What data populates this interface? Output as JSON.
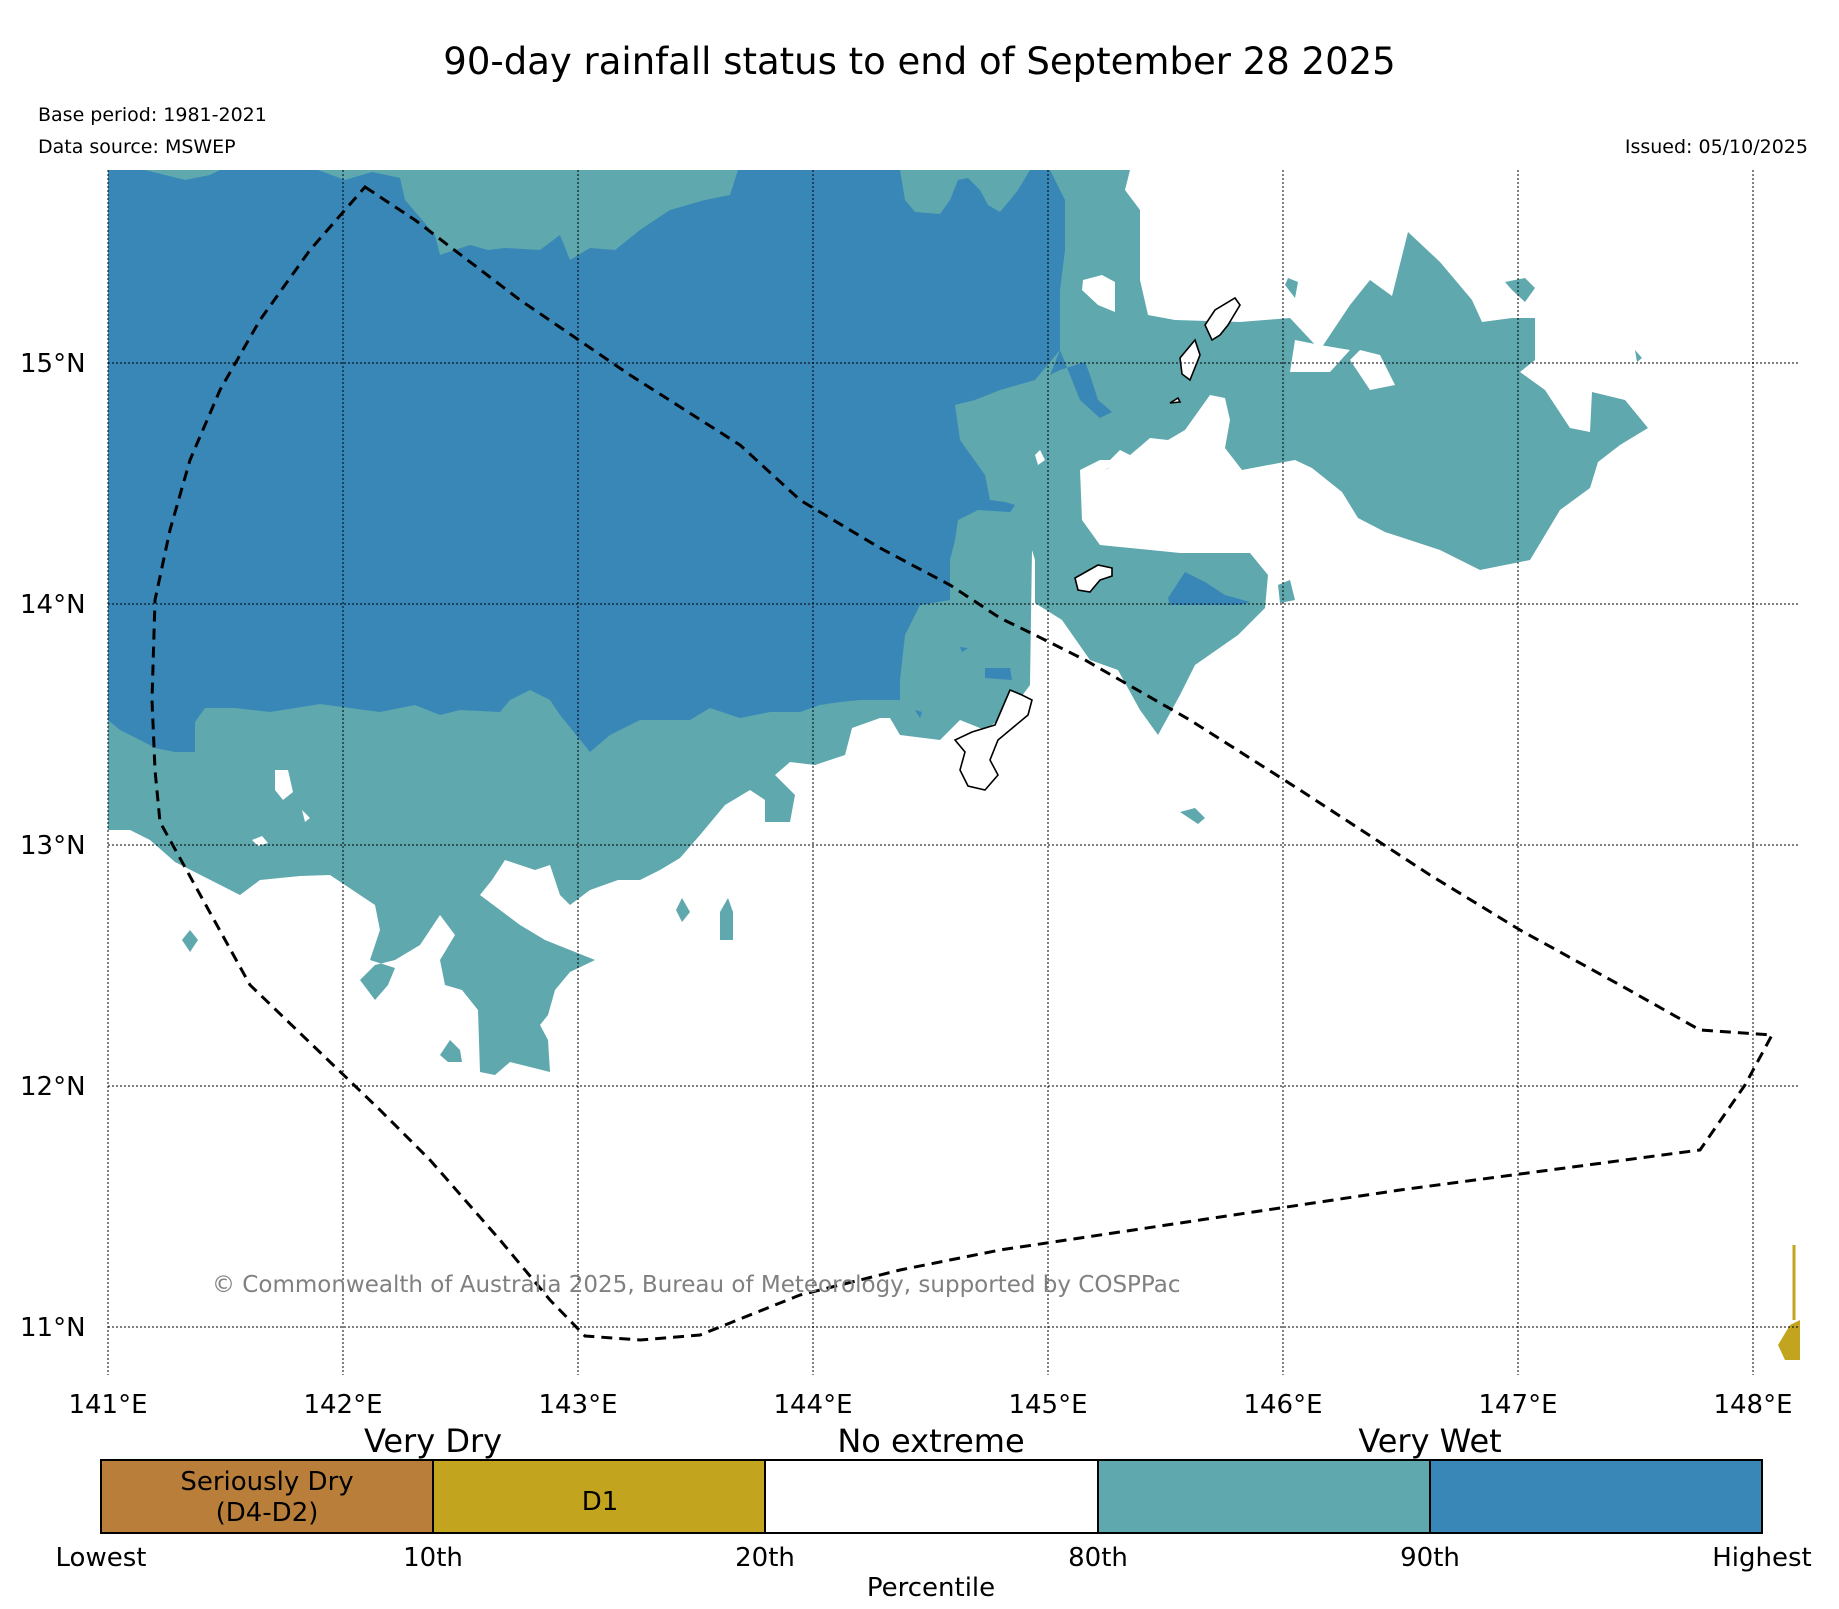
{
  "title": "90-day rainfall status to end of September 28 2025",
  "base_period": "Base period: 1981-2021",
  "data_source": "Data source: MSWEP",
  "issued": "Issued: 05/10/2025",
  "copyright": "© Commonwealth of Australia 2025, Bureau of Meteorology, supported by COSPPac",
  "lon_labels": [
    "141°E",
    "142°E",
    "143°E",
    "144°E",
    "145°E",
    "146°E",
    "147°E",
    "148°E"
  ],
  "lat_labels": [
    "15°N",
    "14°N",
    "13°N",
    "12°N",
    "11°N"
  ],
  "colors": {
    "seriously_dry": "#b97f3a",
    "d1": "#c3a41e",
    "no_extreme": "#ffffff",
    "wet_80_90": "#5ea8ae",
    "very_wet": "#3887b7"
  },
  "legend": {
    "very_dry": "Very Dry",
    "no_extreme": "No extreme",
    "very_wet": "Very Wet",
    "seriously_dry_line1": "Seriously Dry",
    "seriously_dry_line2": "(D4-D2)",
    "d1": "D1",
    "ticks": [
      "Lowest",
      "10th",
      "20th",
      "80th",
      "90th",
      "Highest"
    ],
    "axis_label": "Percentile"
  }
}
